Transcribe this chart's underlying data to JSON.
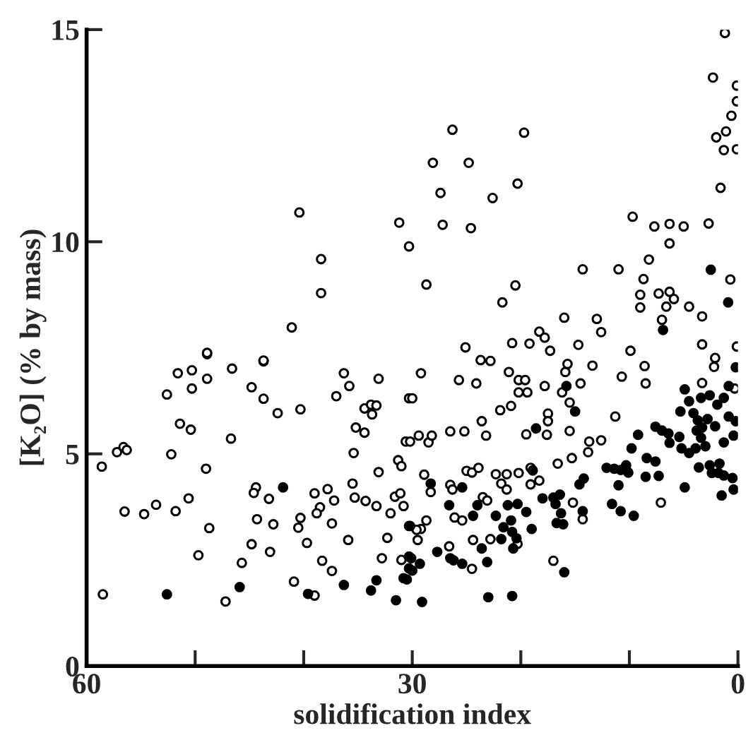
{
  "chart_data": {
    "type": "scatter",
    "xlabel": "solidification index",
    "ylabel": "[K₂O] (% by mass)",
    "xlim": [
      60,
      0
    ],
    "ylim": [
      0,
      15
    ],
    "xticks": [
      60,
      {
        "value": 50,
        "label": null
      },
      {
        "value": 40,
        "label": null
      },
      30,
      {
        "value": 20,
        "label": null
      },
      {
        "value": 10,
        "label": null
      },
      0
    ],
    "yticks": [
      0,
      5,
      10,
      15
    ],
    "marker": "circle",
    "series": [
      {
        "color": "#ffffff",
        "x": [
          58.6,
          58.5,
          57.2,
          56.6,
          56.3,
          56.5,
          54.7,
          53.6,
          52.6,
          51.6,
          52.2,
          51.4,
          50.4,
          50.3,
          50.3,
          50.6,
          51.8,
          48.9,
          48.9,
          49.0,
          48.7,
          49.7,
          46.6,
          46.7,
          44.8,
          43.7,
          43.7,
          42.4,
          40.3,
          44.4,
          44.6,
          43.2,
          44.3,
          42.8,
          44.8,
          43.1,
          45.7,
          47.2,
          40.3,
          40.5,
          39.7,
          39.0,
          37.8,
          38.5,
          38.8,
          37.2,
          37.4,
          38.3,
          37.4,
          40.9,
          39.0,
          35.9,
          35.4,
          35.2,
          34.4,
          36.3,
          35.8,
          37.0,
          33.1,
          34.4,
          33.8,
          33.3,
          33.7,
          35.5,
          35.3,
          34.3,
          33.3,
          33.1,
          31.6,
          31.1,
          30.8,
          32.0,
          32.3,
          32.8,
          31.0,
          31.3,
          31.0,
          30.6,
          30.3,
          40.4,
          38.4,
          38.4,
          41.1,
          48.9,
          43.7,
          31.2,
          30.3,
          1.2,
          2.3,
          0.1,
          0.1,
          0.6,
          1.1,
          2.0,
          1.3,
          0.1,
          1.6,
          26.3,
          19.7,
          28.1,
          24.8,
          27.4,
          22.6,
          20.3,
          27.2,
          24.6,
          28.7,
          20.5,
          21.7,
          16.0,
          13.0,
          12.6,
          14.3,
          11.0,
          9.7,
          7.7,
          6.3,
          5.0,
          2.7,
          6.3,
          8.2,
          8.7,
          9.0,
          9.0,
          7.3,
          6.3,
          6.6,
          5.9,
          4.5,
          3.3,
          7.0,
          0.7,
          0.1,
          3.3,
          25.1,
          20.8,
          19.2,
          18.3,
          17.8,
          17.3,
          14.7,
          9.9,
          23.7,
          22.8,
          29.2,
          30.0,
          25.7,
          24.1,
          21.1,
          20.2,
          19.6,
          20.2,
          19.4,
          17.8,
          16.2,
          15.5,
          14.5,
          15.9,
          15.7,
          13.4,
          8.6,
          8.5,
          10.7,
          21.9,
          20.9,
          17.5,
          17.5,
          19.5,
          17.6,
          15.5,
          11.3,
          23.6,
          23.2,
          26.5,
          25.2,
          30.2,
          29.4,
          28.5,
          28.2,
          13.7,
          12.6,
          13.8,
          15.3,
          16.6,
          3.3,
          2.1,
          2.2,
          0.3,
          28.9,
          28.3,
          26.5,
          26.3,
          25.0,
          24.5,
          23.9,
          23.5,
          23.1,
          26.1,
          25.4,
          22.3,
          21.3,
          21.8,
          21.3,
          20.2,
          19.1,
          19.1,
          18.3,
          28.7,
          29.2,
          29.6,
          29.5,
          24.4,
          22.8,
          20.3,
          26.6,
          24.5,
          15.2,
          14.3,
          17.0,
          7.1
        ],
        "values": [
          4.7,
          1.69,
          5.04,
          5.16,
          5.09,
          3.64,
          3.58,
          3.8,
          6.4,
          6.9,
          4.99,
          5.71,
          5.57,
          6.97,
          6.54,
          3.95,
          3.65,
          6.77,
          7.35,
          4.65,
          3.25,
          2.61,
          7.01,
          5.36,
          6.57,
          7.18,
          6.3,
          5.96,
          6.05,
          4.21,
          4.08,
          3.94,
          3.46,
          3.34,
          2.87,
          2.69,
          2.43,
          1.52,
          3.49,
          3.26,
          2.9,
          4.07,
          4.17,
          3.74,
          3.6,
          3.9,
          3.36,
          2.48,
          2.24,
          1.99,
          1.66,
          2.97,
          5.02,
          5.62,
          5.5,
          6.9,
          6.6,
          6.36,
          6.77,
          6.07,
          6.16,
          6.14,
          5.93,
          4.3,
          3.97,
          3.89,
          3.77,
          4.57,
          3.99,
          4.07,
          3.77,
          3.6,
          3.02,
          2.54,
          2.5,
          4.85,
          4.71,
          5.29,
          6.31,
          10.69,
          9.59,
          8.79,
          7.98,
          7.38,
          7.2,
          10.45,
          9.89,
          14.92,
          13.87,
          13.68,
          13.31,
          12.97,
          12.6,
          12.46,
          12.16,
          12.18,
          11.27,
          12.64,
          12.57,
          11.86,
          11.86,
          11.15,
          11.03,
          11.37,
          10.4,
          10.32,
          8.99,
          8.97,
          8.57,
          8.21,
          8.18,
          7.87,
          9.35,
          9.35,
          10.59,
          10.36,
          10.42,
          10.36,
          10.43,
          9.96,
          9.58,
          9.12,
          8.75,
          8.45,
          8.78,
          8.82,
          8.47,
          8.65,
          8.47,
          8.24,
          8.16,
          9.11,
          7.53,
          7.58,
          7.51,
          7.61,
          7.6,
          7.88,
          7.74,
          7.43,
          7.57,
          7.43,
          7.21,
          7.19,
          6.9,
          6.31,
          6.74,
          6.66,
          6.93,
          6.74,
          6.74,
          6.45,
          6.45,
          6.6,
          6.45,
          6.21,
          6.66,
          6.93,
          7.12,
          7.08,
          7.07,
          6.66,
          6.82,
          6.03,
          6.13,
          5.95,
          5.77,
          5.46,
          5.45,
          5.54,
          5.88,
          5.77,
          5.43,
          5.53,
          5.53,
          5.29,
          5.43,
          5.27,
          5.43,
          5.29,
          5.32,
          5.04,
          4.9,
          4.77,
          6.67,
          7.26,
          7.05,
          6.54,
          4.51,
          4.1,
          4.27,
          4.16,
          4.6,
          4.56,
          4.67,
          3.98,
          3.9,
          3.5,
          3.43,
          4.52,
          4.52,
          4.3,
          4.16,
          4.55,
          4.67,
          4.28,
          4.37,
          3.43,
          3.23,
          3.21,
          2.97,
          2.97,
          2.99,
          2.88,
          2.82,
          2.29,
          3.85,
          3.46,
          2.48,
          3.85
        ]
      },
      {
        "color": "#000000",
        "x": [
          52.6,
          41.9,
          45.9,
          39.6,
          36.3,
          33.3,
          33.8,
          31.5,
          30.8,
          30.3,
          30.3,
          30.3,
          2.5,
          0.9,
          6.9,
          28.3,
          30.2,
          30.0,
          30.5,
          30.1,
          29.3,
          29.1,
          27.7,
          26.5,
          26.2,
          25.4,
          26.6,
          25.4,
          24.4,
          24.0,
          23.6,
          23.1,
          23.0,
          20.8,
          22.3,
          21.6,
          21.8,
          20.8,
          20.7,
          20.4,
          21.2,
          20.3,
          20.9,
          19.5,
          19.0,
          18.9,
          18.0,
          17.0,
          16.4,
          16.8,
          16.3,
          16.7,
          16.1,
          16.0,
          18.6,
          15.8,
          15.0,
          14.6,
          14.2,
          14.3,
          12.1,
          11.4,
          10.8,
          10.3,
          10.1,
          11.0,
          11.6,
          10.8,
          9.6,
          9.8,
          9.2,
          8.4,
          8.5,
          7.3,
          7.6,
          7.6,
          7.0,
          6.4,
          6.3,
          4.9,
          5.3,
          4.9,
          4.5,
          4.1,
          3.7,
          3.3,
          5.4,
          5.2,
          4.5,
          3.9,
          3.0,
          3.6,
          2.6,
          1.8,
          1.5,
          2.4,
          3.4,
          2.6,
          1.9,
          1.3,
          0.85,
          0.2,
          0.85,
          0.2,
          0.4,
          1.3,
          2.1,
          2.8,
          3.4,
          3.8,
          0.5,
          0.4,
          1.3,
          1.7
        ],
        "values": [
          1.69,
          4.21,
          1.86,
          1.7,
          1.91,
          2.02,
          1.78,
          1.55,
          2.07,
          2.58,
          2.3,
          3.3,
          9.34,
          8.57,
          7.92,
          4.3,
          3.3,
          2.25,
          2.04,
          2.54,
          2.41,
          1.51,
          2.69,
          2.54,
          2.49,
          2.41,
          3.79,
          4.21,
          3.54,
          3.79,
          2.77,
          2.45,
          1.62,
          1.65,
          3.54,
          3.27,
          2.99,
          3.16,
          2.77,
          3.01,
          3.79,
          3.82,
          3.43,
          3.63,
          3.23,
          4.61,
          3.95,
          3.97,
          4.04,
          3.82,
          3.6,
          3.37,
          3.34,
          2.21,
          5.6,
          6.6,
          6.0,
          4.28,
          4.42,
          3.65,
          4.67,
          4.65,
          4.62,
          4.73,
          4.56,
          4.26,
          3.82,
          3.65,
          3.54,
          5.13,
          5.45,
          4.9,
          4.46,
          4.48,
          4.82,
          5.64,
          5.55,
          5.48,
          5.26,
          4.21,
          6.0,
          6.52,
          6.24,
          5.96,
          5.79,
          5.62,
          5.4,
          5.13,
          5.02,
          5.13,
          5.18,
          4.68,
          4.73,
          4.55,
          4.02,
          4.55,
          6.32,
          6.38,
          6.16,
          6.32,
          6.6,
          7.04,
          5.88,
          5.77,
          5.43,
          5.27,
          5.65,
          5.82,
          5.38,
          5.55,
          4.43,
          4.16,
          4.49,
          4.77
        ]
      }
    ]
  }
}
